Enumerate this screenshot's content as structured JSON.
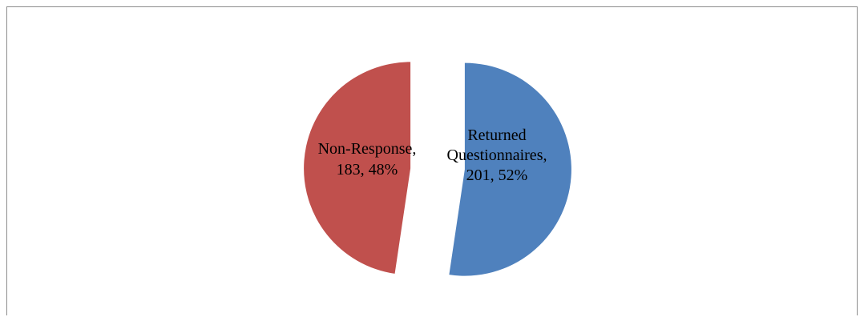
{
  "chart_data": {
    "type": "pie",
    "title": "",
    "legend": "none",
    "exploded": true,
    "start_angle_deg": 0,
    "direction": "clockwise",
    "slices": [
      {
        "name": "Returned Questionnaires",
        "value": 201,
        "percent": 52,
        "color": "#4F81BD",
        "label_lines": [
          "Returned",
          "Questionnaires,",
          "201, 52%"
        ]
      },
      {
        "name": "Non-Response",
        "value": 183,
        "percent": 48,
        "color": "#C0504D",
        "label_lines": [
          "Non-Response,",
          "183, 48%"
        ]
      }
    ]
  }
}
